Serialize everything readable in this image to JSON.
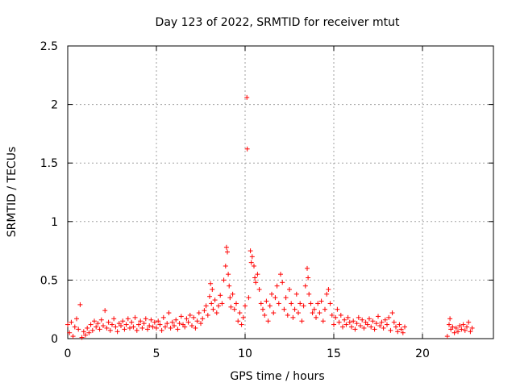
{
  "chart_data": {
    "type": "scatter",
    "title": "Day 123 of 2022, SRMTID for receiver mtut",
    "xlabel": "GPS time / hours",
    "ylabel": "SRMTID / TECUs",
    "xlim": [
      0,
      24
    ],
    "ylim": [
      0,
      2.5
    ],
    "xticks": [
      0,
      5,
      10,
      15,
      20
    ],
    "yticks": [
      0,
      0.5,
      1,
      1.5,
      2,
      2.5
    ],
    "xtick_labels": [
      "0",
      "5",
      "10",
      "15",
      "20"
    ],
    "ytick_labels": [
      "0",
      "0.5",
      "1",
      "1.5",
      "2",
      "2.5"
    ],
    "grid": true,
    "marker": "+",
    "color": "#ff0000",
    "series": [
      {
        "name": "SRMTID",
        "points": [
          [
            0.0,
            0.12
          ],
          [
            0.1,
            0.05
          ],
          [
            0.2,
            0.14
          ],
          [
            0.3,
            0.02
          ],
          [
            0.4,
            0.1
          ],
          [
            0.5,
            0.17
          ],
          [
            0.6,
            0.08
          ],
          [
            0.7,
            0.29
          ],
          [
            0.8,
            0.01
          ],
          [
            0.9,
            0.06
          ],
          [
            1.0,
            0.03
          ],
          [
            1.1,
            0.09
          ],
          [
            1.2,
            0.05
          ],
          [
            1.3,
            0.12
          ],
          [
            1.4,
            0.07
          ],
          [
            1.5,
            0.15
          ],
          [
            1.6,
            0.1
          ],
          [
            1.7,
            0.13
          ],
          [
            1.8,
            0.08
          ],
          [
            1.9,
            0.16
          ],
          [
            2.0,
            0.11
          ],
          [
            2.1,
            0.24
          ],
          [
            2.2,
            0.09
          ],
          [
            2.3,
            0.14
          ],
          [
            2.4,
            0.07
          ],
          [
            2.5,
            0.12
          ],
          [
            2.6,
            0.17
          ],
          [
            2.7,
            0.1
          ],
          [
            2.8,
            0.06
          ],
          [
            2.9,
            0.13
          ],
          [
            3.0,
            0.11
          ],
          [
            3.1,
            0.15
          ],
          [
            3.2,
            0.08
          ],
          [
            3.3,
            0.12
          ],
          [
            3.4,
            0.17
          ],
          [
            3.5,
            0.09
          ],
          [
            3.6,
            0.14
          ],
          [
            3.7,
            0.1
          ],
          [
            3.8,
            0.18
          ],
          [
            3.9,
            0.07
          ],
          [
            4.0,
            0.12
          ],
          [
            4.1,
            0.15
          ],
          [
            4.2,
            0.09
          ],
          [
            4.3,
            0.13
          ],
          [
            4.4,
            0.17
          ],
          [
            4.5,
            0.08
          ],
          [
            4.6,
            0.11
          ],
          [
            4.7,
            0.16
          ],
          [
            4.8,
            0.1
          ],
          [
            4.9,
            0.14
          ],
          [
            5.0,
            0.09
          ],
          [
            5.1,
            0.15
          ],
          [
            5.2,
            0.12
          ],
          [
            5.3,
            0.07
          ],
          [
            5.4,
            0.18
          ],
          [
            5.5,
            0.1
          ],
          [
            5.6,
            0.13
          ],
          [
            5.7,
            0.22
          ],
          [
            5.8,
            0.09
          ],
          [
            5.9,
            0.14
          ],
          [
            6.0,
            0.11
          ],
          [
            6.1,
            0.16
          ],
          [
            6.2,
            0.08
          ],
          [
            6.3,
            0.13
          ],
          [
            6.4,
            0.19
          ],
          [
            6.5,
            0.12
          ],
          [
            6.6,
            0.1
          ],
          [
            6.7,
            0.17
          ],
          [
            6.8,
            0.14
          ],
          [
            6.9,
            0.2
          ],
          [
            7.0,
            0.11
          ],
          [
            7.1,
            0.18
          ],
          [
            7.2,
            0.09
          ],
          [
            7.3,
            0.15
          ],
          [
            7.4,
            0.22
          ],
          [
            7.5,
            0.13
          ],
          [
            7.6,
            0.17
          ],
          [
            7.7,
            0.24
          ],
          [
            7.8,
            0.28
          ],
          [
            7.9,
            0.2
          ],
          [
            8.0,
            0.36
          ],
          [
            8.05,
            0.47
          ],
          [
            8.1,
            0.3
          ],
          [
            8.15,
            0.42
          ],
          [
            8.2,
            0.25
          ],
          [
            8.3,
            0.33
          ],
          [
            8.4,
            0.22
          ],
          [
            8.5,
            0.28
          ],
          [
            8.6,
            0.37
          ],
          [
            8.7,
            0.3
          ],
          [
            8.8,
            0.5
          ],
          [
            8.9,
            0.62
          ],
          [
            8.95,
            0.78
          ],
          [
            9.0,
            0.74
          ],
          [
            9.05,
            0.55
          ],
          [
            9.1,
            0.45
          ],
          [
            9.15,
            0.35
          ],
          [
            9.2,
            0.27
          ],
          [
            9.3,
            0.38
          ],
          [
            9.4,
            0.25
          ],
          [
            9.5,
            0.3
          ],
          [
            9.6,
            0.15
          ],
          [
            9.7,
            0.22
          ],
          [
            9.8,
            0.12
          ],
          [
            9.9,
            0.18
          ],
          [
            10.0,
            0.28
          ],
          [
            10.1,
            2.06
          ],
          [
            10.12,
            1.62
          ],
          [
            10.2,
            0.35
          ],
          [
            10.3,
            0.75
          ],
          [
            10.35,
            0.65
          ],
          [
            10.4,
            0.7
          ],
          [
            10.5,
            0.62
          ],
          [
            10.55,
            0.52
          ],
          [
            10.6,
            0.48
          ],
          [
            10.7,
            0.55
          ],
          [
            10.8,
            0.42
          ],
          [
            10.9,
            0.3
          ],
          [
            11.0,
            0.25
          ],
          [
            11.1,
            0.2
          ],
          [
            11.2,
            0.32
          ],
          [
            11.3,
            0.15
          ],
          [
            11.4,
            0.28
          ],
          [
            11.5,
            0.38
          ],
          [
            11.6,
            0.22
          ],
          [
            11.7,
            0.35
          ],
          [
            11.8,
            0.45
          ],
          [
            11.9,
            0.3
          ],
          [
            12.0,
            0.55
          ],
          [
            12.1,
            0.48
          ],
          [
            12.2,
            0.25
          ],
          [
            12.3,
            0.35
          ],
          [
            12.4,
            0.2
          ],
          [
            12.5,
            0.42
          ],
          [
            12.6,
            0.3
          ],
          [
            12.7,
            0.18
          ],
          [
            12.8,
            0.25
          ],
          [
            12.9,
            0.38
          ],
          [
            13.0,
            0.22
          ],
          [
            13.1,
            0.3
          ],
          [
            13.2,
            0.15
          ],
          [
            13.3,
            0.28
          ],
          [
            13.4,
            0.45
          ],
          [
            13.5,
            0.6
          ],
          [
            13.55,
            0.52
          ],
          [
            13.6,
            0.38
          ],
          [
            13.7,
            0.3
          ],
          [
            13.8,
            0.22
          ],
          [
            13.9,
            0.25
          ],
          [
            14.0,
            0.18
          ],
          [
            14.1,
            0.3
          ],
          [
            14.2,
            0.22
          ],
          [
            14.3,
            0.32
          ],
          [
            14.4,
            0.15
          ],
          [
            14.5,
            0.25
          ],
          [
            14.6,
            0.38
          ],
          [
            14.7,
            0.42
          ],
          [
            14.8,
            0.3
          ],
          [
            14.9,
            0.2
          ],
          [
            15.0,
            0.12
          ],
          [
            15.1,
            0.18
          ],
          [
            15.2,
            0.25
          ],
          [
            15.3,
            0.14
          ],
          [
            15.4,
            0.2
          ],
          [
            15.5,
            0.1
          ],
          [
            15.6,
            0.16
          ],
          [
            15.7,
            0.12
          ],
          [
            15.8,
            0.18
          ],
          [
            15.9,
            0.14
          ],
          [
            16.0,
            0.1
          ],
          [
            16.1,
            0.15
          ],
          [
            16.2,
            0.08
          ],
          [
            16.3,
            0.13
          ],
          [
            16.4,
            0.18
          ],
          [
            16.5,
            0.11
          ],
          [
            16.6,
            0.16
          ],
          [
            16.7,
            0.09
          ],
          [
            16.8,
            0.14
          ],
          [
            16.9,
            0.12
          ],
          [
            17.0,
            0.17
          ],
          [
            17.1,
            0.1
          ],
          [
            17.2,
            0.15
          ],
          [
            17.3,
            0.08
          ],
          [
            17.4,
            0.13
          ],
          [
            17.5,
            0.19
          ],
          [
            17.6,
            0.11
          ],
          [
            17.7,
            0.14
          ],
          [
            17.8,
            0.09
          ],
          [
            17.9,
            0.16
          ],
          [
            18.0,
            0.12
          ],
          [
            18.1,
            0.18
          ],
          [
            18.2,
            0.07
          ],
          [
            18.3,
            0.22
          ],
          [
            18.4,
            0.14
          ],
          [
            18.5,
            0.1
          ],
          [
            18.6,
            0.06
          ],
          [
            18.7,
            0.12
          ],
          [
            18.8,
            0.08
          ],
          [
            18.9,
            0.05
          ],
          [
            19.0,
            0.1
          ],
          [
            21.4,
            0.02
          ],
          [
            21.5,
            0.12
          ],
          [
            21.55,
            0.17
          ],
          [
            21.6,
            0.08
          ],
          [
            21.7,
            0.1
          ],
          [
            21.8,
            0.05
          ],
          [
            21.9,
            0.09
          ],
          [
            22.0,
            0.06
          ],
          [
            22.1,
            0.11
          ],
          [
            22.2,
            0.08
          ],
          [
            22.3,
            0.12
          ],
          [
            22.4,
            0.07
          ],
          [
            22.5,
            0.1
          ],
          [
            22.6,
            0.14
          ],
          [
            22.7,
            0.06
          ],
          [
            22.8,
            0.09
          ]
        ]
      }
    ]
  }
}
